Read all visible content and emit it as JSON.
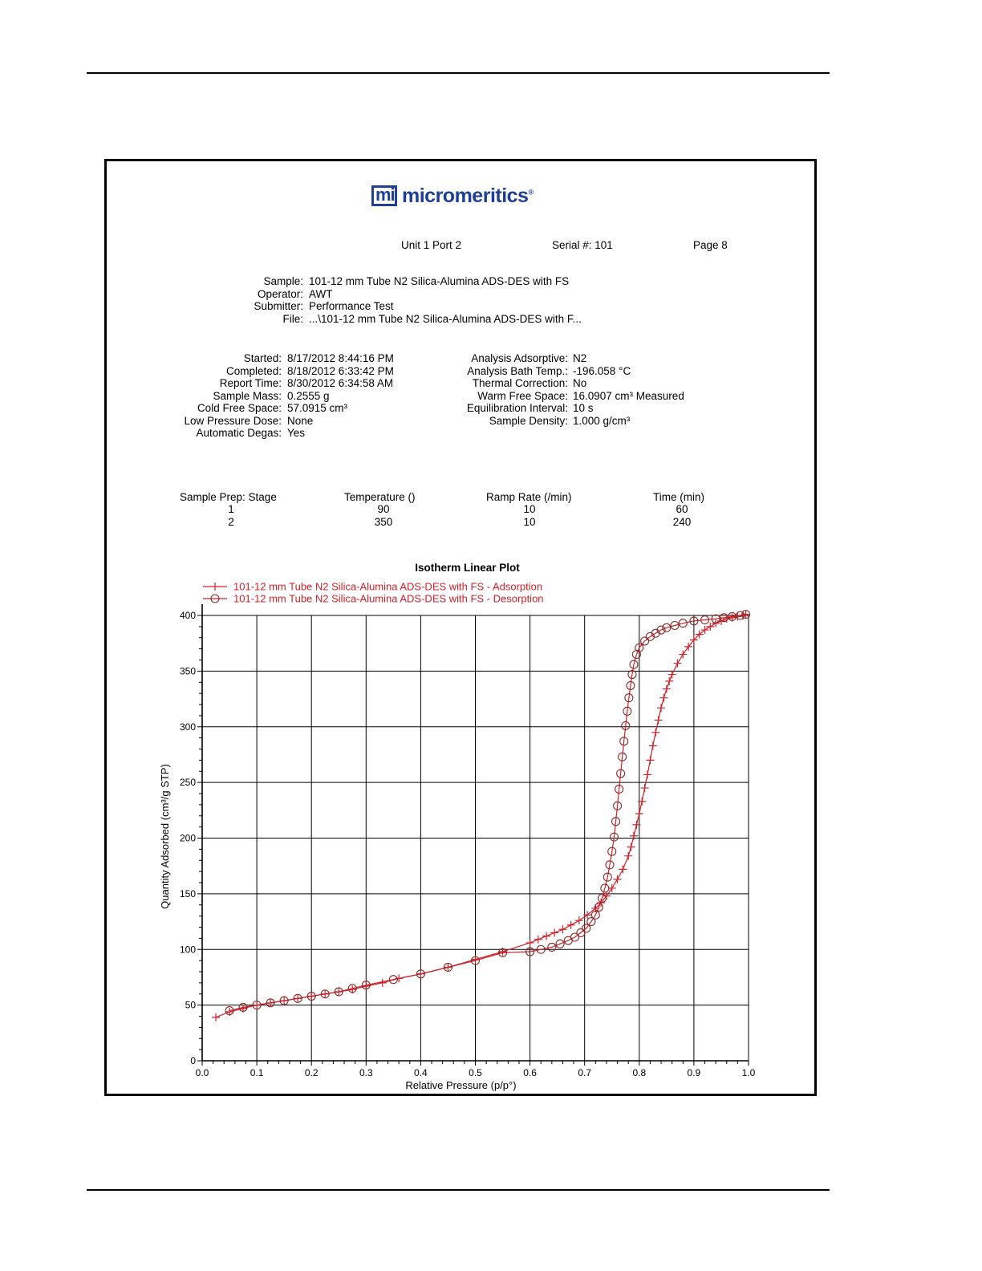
{
  "header": {
    "unit_port": "Unit 1 Port 2",
    "serial": "Serial #: 101",
    "page": "Page 8"
  },
  "logo": {
    "text": "micromeritics",
    "mark": "mi",
    "reg": "®",
    "color": "#1f3f96"
  },
  "sample_info": {
    "labels": [
      "Sample:",
      "Operator:",
      "Submitter:",
      "File:"
    ],
    "values": [
      "101-12 mm Tube N2 Silica-Alumina ADS-DES with FS",
      "AWT",
      "Performance Test",
      "...\\101-12 mm Tube N2 Silica-Alumina ADS-DES with F..."
    ]
  },
  "run_info_left": {
    "labels": [
      "Started:",
      "Completed:",
      "Report Time:",
      "Sample Mass:",
      "Cold Free Space:",
      "Low Pressure Dose:",
      "Automatic Degas:"
    ],
    "values": [
      "8/17/2012 8:44:16 PM",
      "8/18/2012 6:33:42 PM",
      "8/30/2012 6:34:58 AM",
      "0.2555 g",
      "57.0915 cm³",
      "None",
      "Yes"
    ]
  },
  "run_info_right": {
    "labels": [
      "Analysis Adsorptive:",
      "Analysis Bath Temp.:",
      "Thermal Correction:",
      "Warm Free Space:",
      "Equilibration Interval:",
      "Sample Density:"
    ],
    "values": [
      "N2",
      "-196.058 °C",
      "No",
      "16.0907 cm³ Measured",
      "10 s",
      "1.000 g/cm³"
    ]
  },
  "sample_prep": {
    "headers": [
      "Sample Prep:  Stage",
      "Temperature ()",
      "Ramp Rate (/min)",
      "Time (min)"
    ],
    "rows": [
      [
        "1",
        "90",
        "10",
        "60"
      ],
      [
        "2",
        "350",
        "10",
        "240"
      ]
    ]
  },
  "chart_data": {
    "type": "line",
    "title": "Isotherm Linear Plot",
    "xlabel": "Relative Pressure (p/p°)",
    "ylabel": "Quantity Adsorbed (cm³/g STP)",
    "xlim": [
      0.0,
      1.0
    ],
    "ylim": [
      0,
      400
    ],
    "x_ticks": [
      "0.0",
      "0.1",
      "0.2",
      "0.3",
      "0.4",
      "0.5",
      "0.6",
      "0.7",
      "0.8",
      "0.9",
      "1.0"
    ],
    "y_ticks": [
      "0",
      "50",
      "100",
      "150",
      "200",
      "250",
      "300",
      "350",
      "400"
    ],
    "grid": true,
    "legend_position": "top-left",
    "series_color": "#d0202a",
    "series": [
      {
        "name": "101-12 mm Tube N2 Silica-Alumina ADS-DES with FS - Adsorption",
        "marker": "plus",
        "points": [
          [
            0.025,
            39
          ],
          [
            0.05,
            44
          ],
          [
            0.075,
            47
          ],
          [
            0.1,
            50
          ],
          [
            0.125,
            52
          ],
          [
            0.15,
            54
          ],
          [
            0.175,
            56
          ],
          [
            0.2,
            58
          ],
          [
            0.225,
            60
          ],
          [
            0.25,
            62
          ],
          [
            0.275,
            64
          ],
          [
            0.3,
            67
          ],
          [
            0.33,
            70
          ],
          [
            0.36,
            74
          ],
          [
            0.4,
            78
          ],
          [
            0.45,
            84
          ],
          [
            0.5,
            91
          ],
          [
            0.55,
            98
          ],
          [
            0.6,
            106
          ],
          [
            0.615,
            109
          ],
          [
            0.63,
            112
          ],
          [
            0.645,
            115
          ],
          [
            0.66,
            118
          ],
          [
            0.675,
            122
          ],
          [
            0.69,
            126
          ],
          [
            0.705,
            131
          ],
          [
            0.72,
            137
          ],
          [
            0.73,
            142
          ],
          [
            0.74,
            148
          ],
          [
            0.75,
            155
          ],
          [
            0.76,
            163
          ],
          [
            0.77,
            172
          ],
          [
            0.78,
            184
          ],
          [
            0.785,
            192
          ],
          [
            0.79,
            202
          ],
          [
            0.795,
            212
          ],
          [
            0.8,
            222
          ],
          [
            0.805,
            233
          ],
          [
            0.81,
            245
          ],
          [
            0.815,
            257
          ],
          [
            0.82,
            270
          ],
          [
            0.825,
            283
          ],
          [
            0.83,
            295
          ],
          [
            0.835,
            306
          ],
          [
            0.84,
            317
          ],
          [
            0.845,
            326
          ],
          [
            0.85,
            334
          ],
          [
            0.855,
            341
          ],
          [
            0.86,
            347
          ],
          [
            0.87,
            357
          ],
          [
            0.88,
            365
          ],
          [
            0.89,
            372
          ],
          [
            0.9,
            378
          ],
          [
            0.91,
            383
          ],
          [
            0.92,
            387
          ],
          [
            0.93,
            390
          ],
          [
            0.94,
            393
          ],
          [
            0.95,
            395
          ],
          [
            0.96,
            397
          ],
          [
            0.97,
            398
          ],
          [
            0.98,
            399
          ],
          [
            0.99,
            400
          ],
          [
            0.995,
            401
          ]
        ]
      },
      {
        "name": "101-12 mm Tube N2 Silica-Alumina ADS-DES with FS - Desorption",
        "marker": "circle",
        "points": [
          [
            0.995,
            401
          ],
          [
            0.985,
            400
          ],
          [
            0.97,
            399
          ],
          [
            0.955,
            398
          ],
          [
            0.94,
            397
          ],
          [
            0.92,
            396
          ],
          [
            0.9,
            395
          ],
          [
            0.88,
            393
          ],
          [
            0.865,
            391
          ],
          [
            0.85,
            389
          ],
          [
            0.84,
            387
          ],
          [
            0.83,
            384
          ],
          [
            0.82,
            381
          ],
          [
            0.81,
            377
          ],
          [
            0.8,
            371
          ],
          [
            0.795,
            365
          ],
          [
            0.79,
            356
          ],
          [
            0.787,
            347
          ],
          [
            0.784,
            337
          ],
          [
            0.781,
            326
          ],
          [
            0.778,
            314
          ],
          [
            0.775,
            301
          ],
          [
            0.772,
            287
          ],
          [
            0.769,
            273
          ],
          [
            0.766,
            258
          ],
          [
            0.763,
            244
          ],
          [
            0.76,
            229
          ],
          [
            0.757,
            215
          ],
          [
            0.754,
            201
          ],
          [
            0.75,
            188
          ],
          [
            0.746,
            176
          ],
          [
            0.742,
            165
          ],
          [
            0.737,
            155
          ],
          [
            0.732,
            146
          ],
          [
            0.726,
            138
          ],
          [
            0.72,
            131
          ],
          [
            0.712,
            125
          ],
          [
            0.703,
            119
          ],
          [
            0.693,
            115
          ],
          [
            0.682,
            111
          ],
          [
            0.67,
            108
          ],
          [
            0.655,
            105
          ],
          [
            0.64,
            102
          ],
          [
            0.62,
            100
          ],
          [
            0.6,
            98
          ],
          [
            0.55,
            97
          ],
          [
            0.5,
            90
          ],
          [
            0.45,
            84
          ],
          [
            0.4,
            78
          ],
          [
            0.35,
            73
          ],
          [
            0.3,
            68
          ],
          [
            0.275,
            65
          ],
          [
            0.25,
            62
          ],
          [
            0.225,
            60
          ],
          [
            0.2,
            58
          ],
          [
            0.175,
            56
          ],
          [
            0.15,
            54
          ],
          [
            0.125,
            52
          ],
          [
            0.1,
            50
          ],
          [
            0.075,
            48
          ],
          [
            0.05,
            45
          ]
        ]
      }
    ]
  }
}
